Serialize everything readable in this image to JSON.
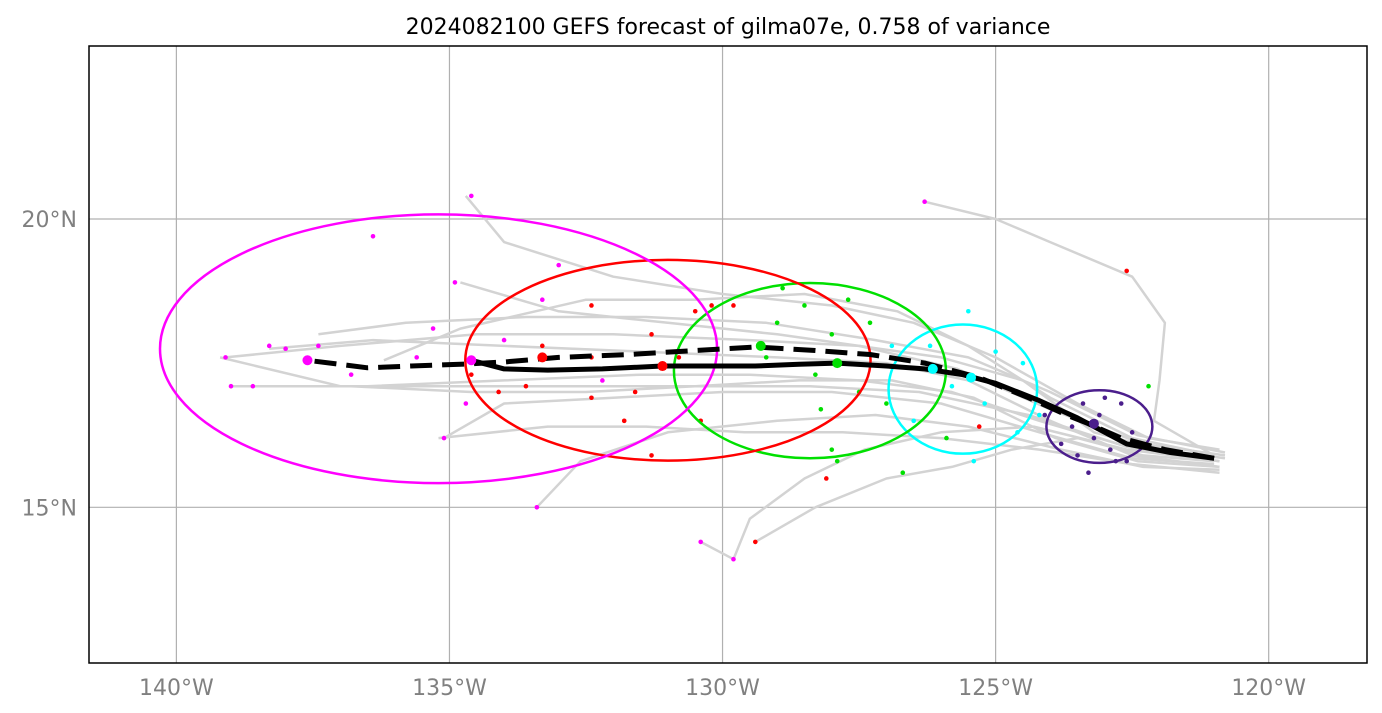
{
  "chart_data": {
    "type": "line",
    "title": "2024082100 GEFS forecast of gilma07e, 0.758 of variance",
    "xlim": [
      -141.6,
      -118.2
    ],
    "ylim": [
      12.3,
      23.0
    ],
    "x_ticks": [
      {
        "value": -140,
        "label": "140°W"
      },
      {
        "value": -135,
        "label": "135°W"
      },
      {
        "value": -130,
        "label": "130°W"
      },
      {
        "value": -125,
        "label": "125°W"
      },
      {
        "value": -120,
        "label": "120°W"
      }
    ],
    "y_ticks": [
      {
        "value": 20,
        "label": "20°N"
      },
      {
        "value": 15,
        "label": "15°N"
      }
    ],
    "grid": true,
    "colors": {
      "member_track": "#d3d3d3",
      "mean_track": "#000000",
      "day1": "#4b1e8c",
      "day2": "#00ffff",
      "day3": "#00e000",
      "day4": "#ff0000",
      "day5": "#ff00ff"
    },
    "mean_track_solid": [
      [
        -121.0,
        15.85
      ],
      [
        -121.8,
        15.95
      ],
      [
        -122.6,
        16.1
      ],
      [
        -123.0,
        16.3
      ],
      [
        -123.5,
        16.55
      ],
      [
        -124.2,
        16.85
      ],
      [
        -125.0,
        17.15
      ],
      [
        -125.6,
        17.3
      ],
      [
        -126.3,
        17.4
      ],
      [
        -127.0,
        17.45
      ],
      [
        -127.9,
        17.5
      ],
      [
        -128.6,
        17.48
      ],
      [
        -129.4,
        17.45
      ],
      [
        -130.2,
        17.45
      ],
      [
        -131.1,
        17.45
      ],
      [
        -132.2,
        17.4
      ],
      [
        -133.2,
        17.38
      ],
      [
        -134.0,
        17.4
      ],
      [
        -134.6,
        17.55
      ]
    ],
    "mean_track_dashed": [
      [
        -121.0,
        15.85
      ],
      [
        -121.9,
        16.0
      ],
      [
        -122.7,
        16.2
      ],
      [
        -123.3,
        16.45
      ],
      [
        -123.7,
        16.6
      ],
      [
        -124.4,
        16.9
      ],
      [
        -125.3,
        17.25
      ],
      [
        -126.3,
        17.5
      ],
      [
        -127.3,
        17.65
      ],
      [
        -128.3,
        17.72
      ],
      [
        -129.4,
        17.78
      ],
      [
        -130.5,
        17.72
      ],
      [
        -131.7,
        17.65
      ],
      [
        -133.0,
        17.6
      ],
      [
        -134.0,
        17.52
      ],
      [
        -134.8,
        17.48
      ],
      [
        -135.7,
        17.45
      ],
      [
        -136.5,
        17.42
      ],
      [
        -137.6,
        17.55
      ]
    ],
    "mean_positions": [
      {
        "day": "day1",
        "x": -123.2,
        "y": 16.45
      },
      {
        "day": "day2",
        "x": -126.15,
        "y": 17.4
      },
      {
        "day": "day2",
        "x": -125.45,
        "y": 17.25
      },
      {
        "day": "day3",
        "x": -129.3,
        "y": 17.8
      },
      {
        "day": "day3",
        "x": -127.9,
        "y": 17.5
      },
      {
        "day": "day4",
        "x": -133.3,
        "y": 17.6
      },
      {
        "day": "day4",
        "x": -131.1,
        "y": 17.45
      },
      {
        "day": "day5",
        "x": -134.6,
        "y": 17.55
      },
      {
        "day": "day5",
        "x": -137.6,
        "y": 17.55
      }
    ],
    "ellipses": [
      {
        "day": "day1",
        "cx": -123.1,
        "cy": 16.4,
        "rx": 0.97,
        "ry": 0.63
      },
      {
        "day": "day2",
        "cx": -125.6,
        "cy": 17.05,
        "rx": 1.36,
        "ry": 1.12
      },
      {
        "day": "day3",
        "cx": -128.4,
        "cy": 17.37,
        "rx": 2.49,
        "ry": 1.52
      },
      {
        "day": "day4",
        "cx": -131.0,
        "cy": 17.55,
        "rx": 3.71,
        "ry": 1.74
      },
      {
        "day": "day5",
        "cx": -135.2,
        "cy": 17.75,
        "rx": 5.1,
        "ry": 2.33
      }
    ],
    "member_tracks": [
      [
        [
          -120.8,
          15.85
        ],
        [
          -122.0,
          16.0
        ],
        [
          -123.2,
          16.3
        ],
        [
          -124.5,
          17.2
        ],
        [
          -126.0,
          17.6
        ],
        [
          -127.5,
          17.8
        ],
        [
          -129.0,
          18.0
        ],
        [
          -131.0,
          18.2
        ],
        [
          -133.0,
          18.4
        ],
        [
          -134.8,
          18.9
        ]
      ],
      [
        [
          -120.9,
          15.7
        ],
        [
          -122.5,
          15.9
        ],
        [
          -124.0,
          16.5
        ],
        [
          -125.5,
          17.2
        ],
        [
          -127.0,
          17.5
        ],
        [
          -129.0,
          17.6
        ],
        [
          -131.5,
          17.7
        ],
        [
          -134.0,
          17.8
        ],
        [
          -136.4,
          17.9
        ],
        [
          -138.3,
          17.75
        ]
      ],
      [
        [
          -120.9,
          16.0
        ],
        [
          -122.2,
          16.2
        ],
        [
          -123.5,
          16.8
        ],
        [
          -125.0,
          17.6
        ],
        [
          -126.5,
          18.2
        ],
        [
          -128.0,
          18.5
        ],
        [
          -130.0,
          18.7
        ],
        [
          -132.0,
          19.0
        ],
        [
          -134.0,
          19.6
        ],
        [
          -134.7,
          20.4
        ]
      ],
      [
        [
          -120.9,
          15.8
        ],
        [
          -122.4,
          16.0
        ],
        [
          -124.2,
          16.5
        ],
        [
          -125.8,
          17.0
        ],
        [
          -127.5,
          17.2
        ],
        [
          -129.5,
          17.3
        ],
        [
          -131.5,
          17.3
        ],
        [
          -134.0,
          17.2
        ],
        [
          -136.5,
          17.1
        ],
        [
          -139.0,
          17.1
        ]
      ],
      [
        [
          -120.8,
          15.9
        ],
        [
          -122.3,
          16.1
        ],
        [
          -124.0,
          16.7
        ],
        [
          -125.7,
          17.4
        ],
        [
          -127.5,
          17.8
        ],
        [
          -129.5,
          17.9
        ],
        [
          -132.0,
          18.0
        ],
        [
          -134.5,
          18.0
        ],
        [
          -137.0,
          17.8
        ],
        [
          -139.1,
          17.6
        ]
      ],
      [
        [
          -121.0,
          15.75
        ],
        [
          -122.5,
          15.85
        ],
        [
          -124.2,
          16.3
        ],
        [
          -126.0,
          16.8
        ],
        [
          -128.0,
          17.0
        ],
        [
          -130.0,
          17.0
        ],
        [
          -132.0,
          16.9
        ],
        [
          -134.0,
          16.8
        ],
        [
          -135.1,
          16.2
        ]
      ],
      [
        [
          -120.9,
          15.65
        ],
        [
          -122.3,
          15.7
        ],
        [
          -123.8,
          16.0
        ],
        [
          -125.5,
          16.4
        ],
        [
          -127.2,
          16.6
        ],
        [
          -129.0,
          16.5
        ],
        [
          -131.0,
          16.3
        ],
        [
          -132.6,
          15.8
        ],
        [
          -133.4,
          15.0
        ]
      ],
      [
        [
          -121.0,
          15.9
        ],
        [
          -122.5,
          16.2
        ],
        [
          -124.0,
          16.9
        ],
        [
          -125.5,
          17.8
        ],
        [
          -126.8,
          18.4
        ],
        [
          -128.5,
          18.7
        ],
        [
          -130.5,
          18.6
        ],
        [
          -132.5,
          18.6
        ],
        [
          -134.8,
          18.1
        ],
        [
          -136.2,
          17.55
        ]
      ],
      [
        [
          -120.9,
          15.8
        ],
        [
          -122.6,
          16.0
        ],
        [
          -124.3,
          16.4
        ],
        [
          -126.0,
          16.3
        ],
        [
          -127.4,
          16.0
        ],
        [
          -128.5,
          15.5
        ],
        [
          -129.5,
          14.8
        ],
        [
          -129.8,
          14.1
        ],
        [
          -130.4,
          14.4
        ]
      ],
      [
        [
          -121.0,
          15.8
        ],
        [
          -122.3,
          15.9
        ],
        [
          -123.5,
          16.2
        ],
        [
          -124.7,
          16.0
        ],
        [
          -125.8,
          15.7
        ],
        [
          -127.0,
          15.5
        ],
        [
          -128.3,
          15.0
        ],
        [
          -129.4,
          14.4
        ]
      ],
      [
        [
          -121.0,
          15.9
        ],
        [
          -122.1,
          16.5
        ],
        [
          -122.0,
          17.2
        ],
        [
          -121.9,
          18.2
        ],
        [
          -122.5,
          19.0
        ],
        [
          -124.0,
          19.6
        ],
        [
          -125.0,
          20.0
        ],
        [
          -126.3,
          20.3
        ]
      ],
      [
        [
          -120.9,
          15.7
        ],
        [
          -122.4,
          15.8
        ],
        [
          -123.9,
          16.2
        ],
        [
          -125.4,
          16.9
        ],
        [
          -126.9,
          17.2
        ],
        [
          -128.6,
          17.2
        ],
        [
          -130.5,
          17.1
        ],
        [
          -132.5,
          17.0
        ],
        [
          -134.6,
          17.0
        ],
        [
          -136.8,
          17.1
        ]
      ],
      [
        [
          -120.8,
          15.95
        ],
        [
          -122.4,
          16.25
        ],
        [
          -124.0,
          17.0
        ],
        [
          -125.5,
          17.6
        ],
        [
          -127.2,
          17.9
        ],
        [
          -129.2,
          18.2
        ],
        [
          -131.4,
          18.3
        ],
        [
          -133.6,
          18.3
        ],
        [
          -135.8,
          18.2
        ],
        [
          -137.4,
          18.0
        ]
      ],
      [
        [
          -120.9,
          15.6
        ],
        [
          -122.5,
          15.75
        ],
        [
          -124.2,
          16.0
        ],
        [
          -126.0,
          16.2
        ],
        [
          -127.8,
          16.3
        ],
        [
          -129.6,
          16.3
        ],
        [
          -131.4,
          16.4
        ],
        [
          -133.2,
          16.4
        ],
        [
          -135.2,
          16.2
        ]
      ],
      [
        [
          -121.0,
          15.85
        ],
        [
          -122.6,
          16.05
        ],
        [
          -124.4,
          16.6
        ],
        [
          -126.4,
          17.0
        ],
        [
          -128.4,
          17.1
        ],
        [
          -130.4,
          17.1
        ],
        [
          -132.4,
          17.1
        ],
        [
          -134.6,
          17.1
        ],
        [
          -137.0,
          17.1
        ],
        [
          -139.2,
          17.6
        ]
      ]
    ],
    "member_points": {
      "day1": [
        [
          -123.4,
          16.8
        ],
        [
          -123.0,
          16.9
        ],
        [
          -122.7,
          16.8
        ],
        [
          -123.6,
          16.4
        ],
        [
          -123.2,
          16.2
        ],
        [
          -122.9,
          16.0
        ],
        [
          -123.5,
          15.9
        ],
        [
          -122.8,
          15.8
        ],
        [
          -123.3,
          15.6
        ],
        [
          -122.5,
          16.3
        ],
        [
          -123.8,
          16.1
        ],
        [
          -124.1,
          16.6
        ],
        [
          -122.6,
          15.8
        ],
        [
          -123.1,
          16.6
        ]
      ],
      "day2": [
        [
          -125.5,
          18.4
        ],
        [
          -126.2,
          17.8
        ],
        [
          -125.0,
          17.7
        ],
        [
          -124.5,
          17.5
        ],
        [
          -125.8,
          17.1
        ],
        [
          -126.5,
          16.5
        ],
        [
          -125.2,
          16.8
        ],
        [
          -124.6,
          16.3
        ],
        [
          -125.4,
          15.8
        ],
        [
          -126.9,
          17.8
        ],
        [
          -124.2,
          16.6
        ]
      ],
      "day3": [
        [
          -128.9,
          18.8
        ],
        [
          -128.5,
          18.5
        ],
        [
          -127.7,
          18.6
        ],
        [
          -129.0,
          18.2
        ],
        [
          -128.0,
          18.0
        ],
        [
          -127.3,
          18.2
        ],
        [
          -129.2,
          17.6
        ],
        [
          -128.3,
          17.3
        ],
        [
          -127.5,
          17.0
        ],
        [
          -128.2,
          16.7
        ],
        [
          -127.0,
          16.8
        ],
        [
          -128.0,
          16.0
        ],
        [
          -126.7,
          15.6
        ],
        [
          -125.9,
          16.2
        ],
        [
          -122.2,
          17.1
        ],
        [
          -127.9,
          15.8
        ]
      ],
      "day4": [
        [
          -133.3,
          17.8
        ],
        [
          -132.4,
          18.5
        ],
        [
          -131.3,
          18.0
        ],
        [
          -130.5,
          18.4
        ],
        [
          -130.2,
          18.5
        ],
        [
          -132.4,
          17.6
        ],
        [
          -131.6,
          17.0
        ],
        [
          -133.6,
          17.1
        ],
        [
          -132.4,
          16.9
        ],
        [
          -131.8,
          16.5
        ],
        [
          -130.4,
          16.5
        ],
        [
          -131.3,
          15.9
        ],
        [
          -134.6,
          17.3
        ],
        [
          -128.1,
          15.5
        ],
        [
          -129.8,
          18.5
        ],
        [
          -125.3,
          16.4
        ],
        [
          -122.6,
          19.1
        ],
        [
          -129.4,
          14.4
        ],
        [
          -134.1,
          17.0
        ],
        [
          -130.8,
          17.6
        ]
      ],
      "day5": [
        [
          -134.6,
          20.4
        ],
        [
          -136.4,
          19.7
        ],
        [
          -133.0,
          19.2
        ],
        [
          -134.9,
          18.9
        ],
        [
          -138.3,
          17.8
        ],
        [
          -135.3,
          18.1
        ],
        [
          -137.4,
          17.8
        ],
        [
          -134.0,
          17.9
        ],
        [
          -136.8,
          17.3
        ],
        [
          -135.6,
          17.6
        ],
        [
          -139.0,
          17.1
        ],
        [
          -138.6,
          17.1
        ],
        [
          -135.1,
          16.2
        ],
        [
          -134.7,
          16.8
        ],
        [
          -133.4,
          15.0
        ],
        [
          -130.4,
          14.4
        ],
        [
          -129.8,
          14.1
        ],
        [
          -132.2,
          17.2
        ],
        [
          -138.0,
          17.75
        ],
        [
          -139.1,
          17.6
        ],
        [
          -126.3,
          20.3
        ],
        [
          -133.3,
          18.6
        ]
      ]
    }
  }
}
